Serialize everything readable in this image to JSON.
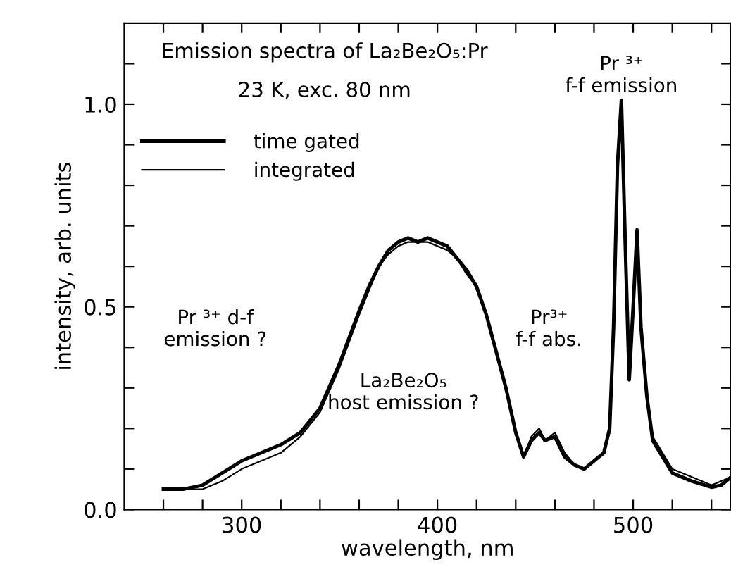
{
  "chart_data": {
    "type": "line",
    "title": "Emission spectra of La₂Be₂O₅:Pr",
    "subtitle": "23 K, exc. 80 nm",
    "xlabel": "wavelength, nm",
    "ylabel": "intensity, arb. units",
    "xlim": [
      240,
      550
    ],
    "ylim": [
      0,
      1.2
    ],
    "xticks": [
      {
        "value": 260,
        "label": null
      },
      {
        "value": 280,
        "label": null
      },
      300,
      {
        "value": 320,
        "label": null
      },
      {
        "value": 340,
        "label": null
      },
      {
        "value": 360,
        "label": null
      },
      {
        "value": 380,
        "label": null
      },
      400,
      {
        "value": 420,
        "label": null
      },
      {
        "value": 440,
        "label": null
      },
      {
        "value": 460,
        "label": null
      },
      {
        "value": 480,
        "label": null
      },
      500,
      {
        "value": 520,
        "label": null
      },
      {
        "value": 540,
        "label": null
      }
    ],
    "yticks": [
      {
        "value": 0,
        "label": "0.0"
      },
      {
        "value": 0.1,
        "label": null
      },
      {
        "value": 0.2,
        "label": null
      },
      {
        "value": 0.3,
        "label": null
      },
      {
        "value": 0.4,
        "label": null
      },
      {
        "value": 0.5,
        "label": "0.5"
      },
      {
        "value": 0.6,
        "label": null
      },
      {
        "value": 0.7,
        "label": null
      },
      {
        "value": 0.8,
        "label": null
      },
      {
        "value": 0.9,
        "label": null
      },
      {
        "value": 1.0,
        "label": "1.0"
      },
      {
        "value": 1.1,
        "label": null
      }
    ],
    "x": [
      260,
      270,
      280,
      290,
      300,
      310,
      320,
      330,
      340,
      350,
      360,
      365,
      370,
      375,
      380,
      385,
      390,
      395,
      400,
      405,
      410,
      415,
      420,
      425,
      430,
      435,
      440,
      444,
      448,
      452,
      455,
      460,
      465,
      470,
      475,
      480,
      485,
      488,
      490,
      492,
      494,
      496,
      498,
      500,
      502,
      504,
      507,
      510,
      515,
      520,
      530,
      540,
      545,
      550
    ],
    "series": [
      {
        "name": "time gated",
        "color": "#000000",
        "values": [
          0.05,
          0.05,
          0.06,
          0.09,
          0.12,
          0.14,
          0.16,
          0.19,
          0.25,
          0.36,
          0.49,
          0.55,
          0.6,
          0.64,
          0.66,
          0.67,
          0.66,
          0.67,
          0.66,
          0.65,
          0.62,
          0.59,
          0.55,
          0.48,
          0.39,
          0.3,
          0.19,
          0.13,
          0.17,
          0.19,
          0.17,
          0.18,
          0.13,
          0.11,
          0.1,
          0.12,
          0.14,
          0.2,
          0.45,
          0.85,
          1.01,
          0.65,
          0.32,
          0.5,
          0.69,
          0.45,
          0.28,
          0.17,
          0.13,
          0.09,
          0.07,
          0.055,
          0.06,
          0.08
        ]
      },
      {
        "name": "integrated",
        "color": "#000000",
        "values": [
          0.05,
          0.05,
          0.05,
          0.07,
          0.1,
          0.12,
          0.14,
          0.18,
          0.24,
          0.35,
          0.48,
          0.54,
          0.6,
          0.63,
          0.65,
          0.66,
          0.66,
          0.66,
          0.65,
          0.64,
          0.62,
          0.58,
          0.55,
          0.48,
          0.39,
          0.3,
          0.19,
          0.13,
          0.18,
          0.2,
          0.17,
          0.19,
          0.14,
          0.11,
          0.1,
          0.12,
          0.14,
          0.19,
          0.43,
          0.83,
          0.99,
          0.64,
          0.33,
          0.5,
          0.68,
          0.46,
          0.29,
          0.18,
          0.14,
          0.1,
          0.08,
          0.06,
          0.07,
          0.08
        ]
      }
    ],
    "legend": "top left",
    "grid": false,
    "marker": "none",
    "line_style": "solid",
    "annotations": [
      "Pr ³⁺ d-f\nemission ?",
      "La₂Be₂O₅\nhost emission ?",
      "Pr³⁺\nf-f abs.",
      {
        "text": "Pr ³⁺\nf-f emission",
        "x": 494,
        "y": 1.01
      }
    ]
  }
}
